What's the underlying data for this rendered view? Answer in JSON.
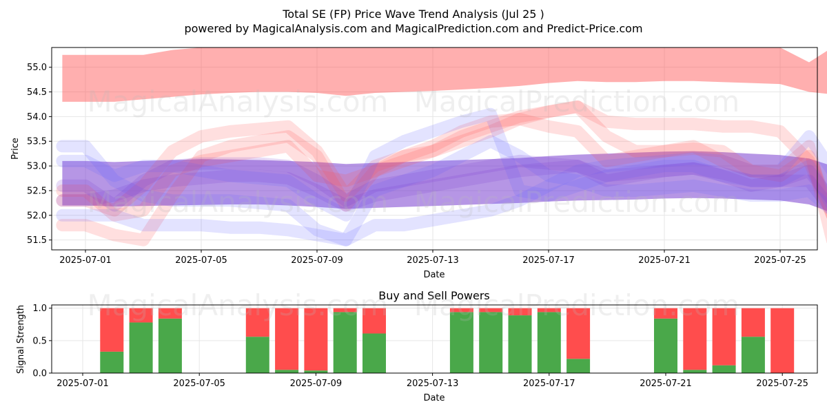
{
  "title_line1": "Total SE (FP) Price Wave Trend Analysis (Jul 25 )",
  "title_line2": "powered by MagicalAnalysis.com and MagicalPrediction.com and Predict-Price.com",
  "watermarks": [
    "MagicalAnalysis.com",
    "MagicalPrediction.com"
  ],
  "colors": {
    "red": "#ff4d4d",
    "blue": "#6666ff",
    "purple": "#7a3fd0",
    "green": "#4aa84a",
    "sell": "#ff4d4d"
  },
  "chart_data": [
    {
      "type": "area",
      "title": "",
      "xlabel": "Date",
      "ylabel": "Price",
      "ylim": [
        51.3,
        55.4
      ],
      "yticks": [
        "51.5",
        "52.0",
        "52.5",
        "53.0",
        "53.5",
        "54.0",
        "54.5",
        "55.0"
      ],
      "xticks": [
        "2025-07-01",
        "2025-07-05",
        "2025-07-09",
        "2025-07-13",
        "2025-07-17",
        "2025-07-21",
        "2025-07-25"
      ],
      "x": [
        -0.8,
        0,
        1,
        2,
        3,
        4,
        5,
        6,
        7,
        8,
        9,
        10,
        11,
        12,
        13,
        14,
        15,
        16,
        17,
        18,
        19,
        20,
        21,
        22,
        23,
        24,
        25,
        25.8
      ],
      "series": [
        {
          "name": "top red band",
          "color": "red",
          "upper": [
            55.25,
            55.25,
            55.25,
            55.25,
            55.35,
            55.4,
            55.4,
            55.4,
            55.4,
            55.4,
            55.4,
            55.4,
            55.4,
            55.4,
            55.4,
            55.4,
            55.4,
            55.4,
            55.4,
            55.4,
            55.4,
            55.4,
            55.4,
            55.4,
            55.4,
            55.4,
            55.1,
            55.4
          ],
          "lower": [
            54.3,
            54.3,
            54.3,
            54.35,
            54.4,
            54.45,
            54.48,
            54.5,
            54.5,
            54.48,
            54.42,
            54.48,
            54.5,
            54.52,
            54.55,
            54.58,
            54.62,
            54.68,
            54.72,
            54.7,
            54.7,
            54.72,
            54.72,
            54.7,
            54.68,
            54.66,
            54.5,
            54.45
          ]
        },
        {
          "name": "purple band",
          "color": "purple",
          "upper": [
            53.1,
            53.1,
            53.08,
            53.1,
            53.12,
            53.14,
            53.13,
            53.12,
            53.1,
            53.08,
            53.04,
            53.06,
            53.08,
            53.1,
            53.12,
            53.14,
            53.16,
            53.2,
            53.23,
            53.25,
            53.27,
            53.29,
            53.3,
            53.28,
            53.25,
            53.22,
            53.15,
            53.0
          ],
          "lower": [
            52.2,
            52.2,
            52.18,
            52.19,
            52.2,
            52.21,
            52.22,
            52.22,
            52.2,
            52.17,
            52.13,
            52.15,
            52.17,
            52.19,
            52.21,
            52.23,
            52.25,
            52.28,
            52.3,
            52.31,
            52.32,
            52.34,
            52.35,
            52.34,
            52.32,
            52.3,
            52.22,
            52.05
          ]
        }
      ],
      "lines": [
        {
          "color": "red",
          "values": [
            52.3,
            52.3,
            52.1,
            52.6,
            53.3,
            53.6,
            53.7,
            53.75,
            53.8,
            53.3,
            52.4,
            53.0,
            53.2,
            53.3,
            53.6,
            53.8,
            54.0,
            54.1,
            54.2,
            53.9,
            53.85,
            53.85,
            53.85,
            53.8,
            53.8,
            53.7,
            53.1,
            52.0
          ]
        },
        {
          "color": "red",
          "values": [
            51.8,
            51.8,
            51.6,
            51.5,
            52.4,
            53.2,
            53.4,
            53.5,
            53.6,
            53.2,
            52.2,
            52.9,
            53.2,
            53.4,
            53.7,
            53.9,
            53.95,
            54.1,
            54.2,
            53.6,
            53.3,
            53.3,
            53.35,
            53.3,
            52.9,
            52.9,
            53.4,
            51.5
          ]
        },
        {
          "color": "red",
          "values": [
            52.5,
            52.5,
            52.0,
            52.1,
            52.9,
            53.1,
            53.2,
            53.3,
            53.4,
            52.8,
            52.7,
            52.9,
            53.1,
            53.3,
            53.5,
            53.7,
            53.95,
            53.8,
            53.7,
            53.1,
            53.2,
            53.3,
            53.4,
            53.1,
            52.9,
            52.8,
            53.2,
            52.0
          ]
        },
        {
          "color": "blue",
          "values": [
            53.4,
            53.4,
            52.7,
            52.4,
            52.3,
            52.3,
            52.3,
            52.25,
            52.2,
            51.7,
            51.5,
            51.8,
            51.8,
            51.9,
            52.0,
            52.1,
            52.3,
            52.6,
            52.9,
            53.0,
            53.05,
            53.1,
            53.15,
            53.1,
            52.9,
            52.9,
            53.6,
            52.9
          ]
        },
        {
          "color": "blue",
          "values": [
            52.0,
            52.0,
            52.0,
            51.8,
            51.8,
            51.8,
            51.75,
            51.75,
            51.7,
            51.6,
            51.5,
            52.5,
            52.7,
            52.9,
            53.2,
            53.5,
            53.2,
            52.8,
            52.7,
            52.5,
            52.5,
            52.55,
            52.6,
            52.5,
            52.4,
            52.4,
            52.5,
            52.1
          ]
        },
        {
          "color": "blue",
          "values": [
            53.1,
            53.1,
            52.8,
            53.0,
            53.0,
            52.9,
            52.8,
            52.75,
            52.7,
            52.3,
            52.0,
            53.2,
            53.5,
            53.7,
            53.9,
            54.05,
            52.5,
            52.4,
            52.6,
            52.8,
            52.9,
            53.0,
            53.0,
            52.8,
            52.7,
            52.7,
            53.0,
            52.2
          ]
        },
        {
          "color": "purple",
          "values": [
            52.6,
            52.6,
            52.2,
            52.7,
            53.0,
            53.05,
            53.05,
            53.05,
            53.0,
            52.7,
            52.3,
            52.6,
            52.7,
            52.8,
            52.9,
            53.0,
            53.1,
            53.05,
            53.0,
            52.8,
            52.85,
            52.9,
            52.95,
            52.85,
            52.7,
            52.7,
            52.9,
            52.3
          ]
        },
        {
          "color": "purple",
          "values": [
            52.3,
            52.3,
            52.4,
            52.6,
            52.7,
            52.75,
            52.8,
            52.8,
            52.75,
            52.5,
            52.2,
            52.4,
            52.5,
            52.6,
            52.7,
            52.8,
            52.9,
            52.95,
            53.0,
            52.7,
            52.8,
            52.9,
            52.95,
            52.8,
            52.6,
            52.7,
            52.7,
            52.1
          ]
        }
      ]
    },
    {
      "type": "bar",
      "title": "Buy and Sell Powers",
      "xlabel": "Date",
      "ylabel": "Signal Strength",
      "ylim": [
        0,
        1.05
      ],
      "yticks": [
        "0.0",
        "0.5",
        "1.0"
      ],
      "xticks": [
        "2025-07-01",
        "2025-07-05",
        "2025-07-09",
        "2025-07-13",
        "2025-07-17",
        "2025-07-21",
        "2025-07-25"
      ],
      "days": [
        1,
        2,
        3,
        6,
        7,
        8,
        9,
        10,
        13,
        14,
        15,
        16,
        17,
        20,
        21,
        22,
        23,
        24
      ],
      "buy": [
        0.33,
        0.78,
        0.84,
        0.56,
        0.05,
        0.04,
        0.94,
        0.61,
        0.94,
        0.94,
        0.89,
        0.94,
        0.22,
        0.84,
        0.05,
        0.12,
        0.56,
        0.0
      ],
      "sell": [
        0.67,
        0.22,
        0.16,
        0.44,
        0.95,
        0.96,
        0.06,
        0.39,
        0.06,
        0.06,
        0.11,
        0.06,
        0.78,
        0.16,
        0.95,
        0.88,
        0.44,
        1.0
      ]
    }
  ]
}
